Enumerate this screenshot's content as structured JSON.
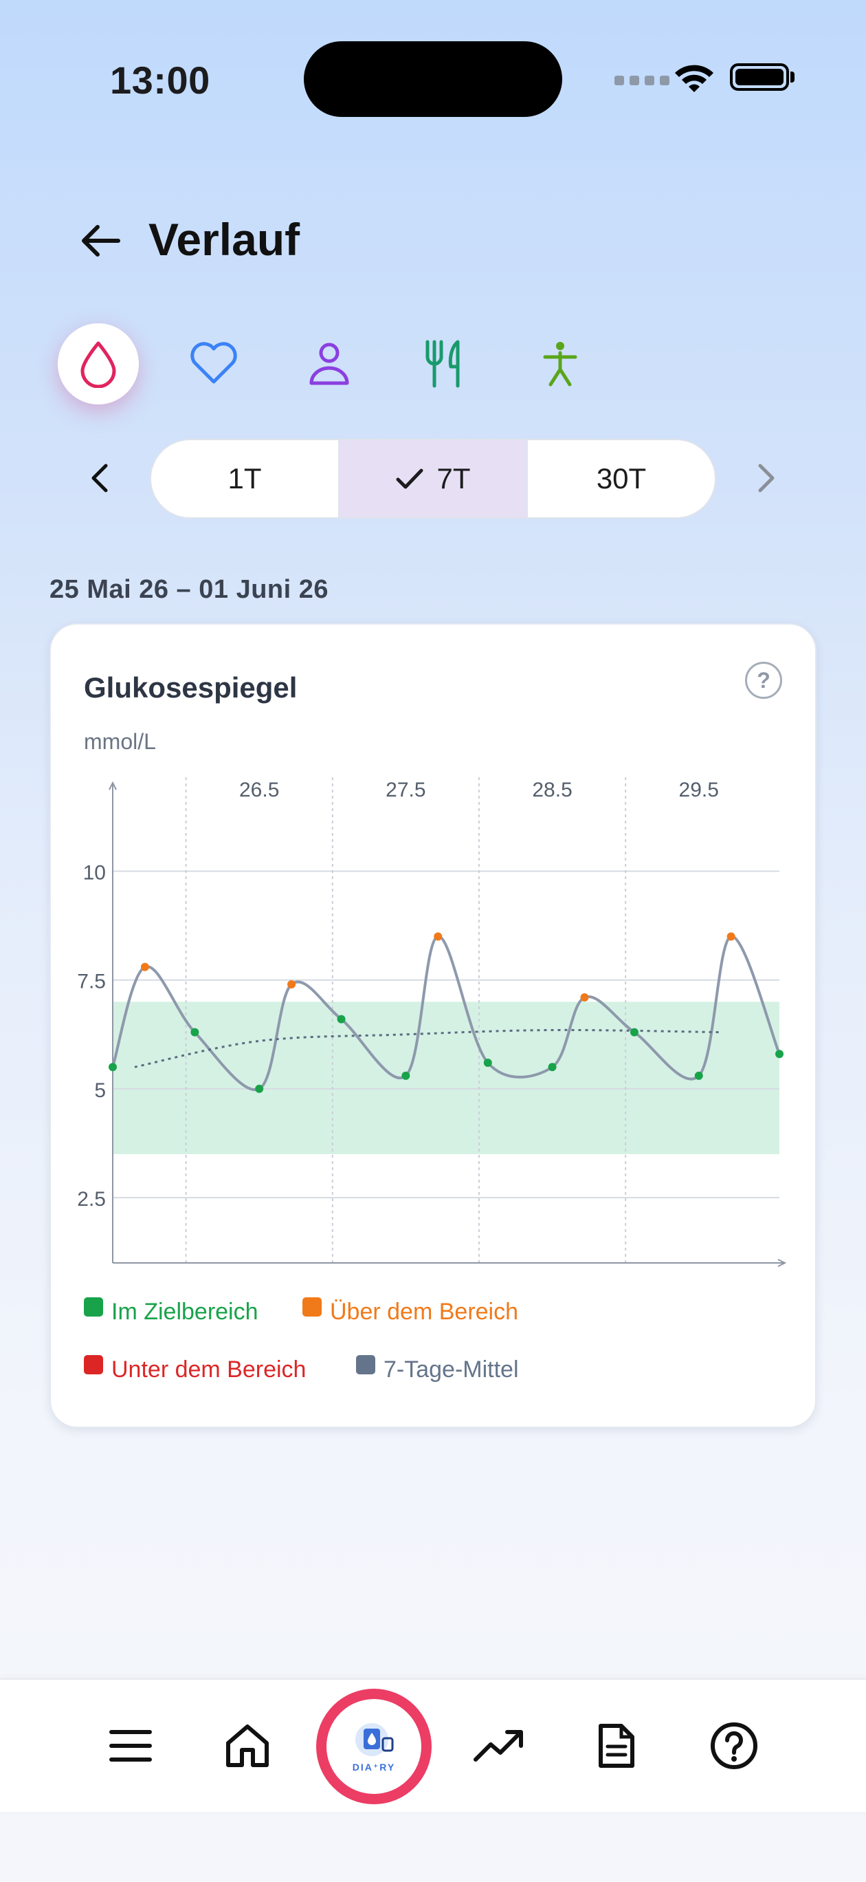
{
  "status": {
    "time": "13:00"
  },
  "header": {
    "title": "Verlauf"
  },
  "categories": [
    {
      "icon": "blood-drop-icon",
      "active": true,
      "color": "#e0245e"
    },
    {
      "icon": "heart-icon",
      "active": false,
      "color": "#3b82f6"
    },
    {
      "icon": "person-icon",
      "active": false,
      "color": "#8b3fe0"
    },
    {
      "icon": "fork-knife-icon",
      "active": false,
      "color": "#1a9a6c"
    },
    {
      "icon": "figure-icon",
      "active": false,
      "color": "#5aa51a"
    }
  ],
  "range": {
    "options": [
      "1T",
      "7T",
      "30T"
    ],
    "selected": "7T",
    "date_range": "25 Mai 26 – 01 Juni 26"
  },
  "card": {
    "title": "Glukosespiegel",
    "help": "?",
    "unit": "mmol/L"
  },
  "chart_data": {
    "type": "line",
    "title": "Glukosespiegel",
    "ylabel": "mmol/L",
    "ylim": [
      1,
      12
    ],
    "yticks": [
      2.5,
      5,
      7.5,
      10
    ],
    "xlim": [
      25.5,
      30.05
    ],
    "xticks": [
      26.5,
      27.5,
      28.5,
      29.5
    ],
    "target_range": [
      3.5,
      7.0
    ],
    "grid": true,
    "series": [
      {
        "name": "Glucose",
        "color": "#8e99ac",
        "points": [
          {
            "x": 25.5,
            "y": 5.5
          },
          {
            "x": 25.72,
            "y": 7.8
          },
          {
            "x": 26.06,
            "y": 6.3
          },
          {
            "x": 26.5,
            "y": 5.0
          },
          {
            "x": 26.72,
            "y": 7.4
          },
          {
            "x": 27.06,
            "y": 6.6
          },
          {
            "x": 27.5,
            "y": 5.3
          },
          {
            "x": 27.72,
            "y": 8.5
          },
          {
            "x": 28.06,
            "y": 5.6
          },
          {
            "x": 28.5,
            "y": 5.5
          },
          {
            "x": 28.72,
            "y": 7.1
          },
          {
            "x": 29.06,
            "y": 6.3
          },
          {
            "x": 29.5,
            "y": 5.3
          },
          {
            "x": 29.72,
            "y": 8.5
          },
          {
            "x": 30.05,
            "y": 5.8
          }
        ]
      },
      {
        "name": "7-Tage-Mittel",
        "color": "#5b6b80",
        "dashed": true,
        "points": [
          {
            "x": 25.65,
            "y": 5.5
          },
          {
            "x": 26.5,
            "y": 6.1
          },
          {
            "x": 27.5,
            "y": 6.25
          },
          {
            "x": 28.5,
            "y": 6.35
          },
          {
            "x": 29.65,
            "y": 6.3
          }
        ]
      }
    ],
    "legend": [
      {
        "label": "Im Zielbereich",
        "color": "#18a34a"
      },
      {
        "label": "Über dem Bereich",
        "color": "#f07a1a"
      },
      {
        "label": "Unter dem Bereich",
        "color": "#dc2626"
      },
      {
        "label": "7-Tage-Mittel",
        "color": "#64748b"
      }
    ]
  },
  "nav": {
    "items": [
      "menu-icon",
      "home-icon",
      "diary-logo",
      "trend-icon",
      "document-icon",
      "help-icon"
    ],
    "logo_text": "DIA⁺RY"
  }
}
